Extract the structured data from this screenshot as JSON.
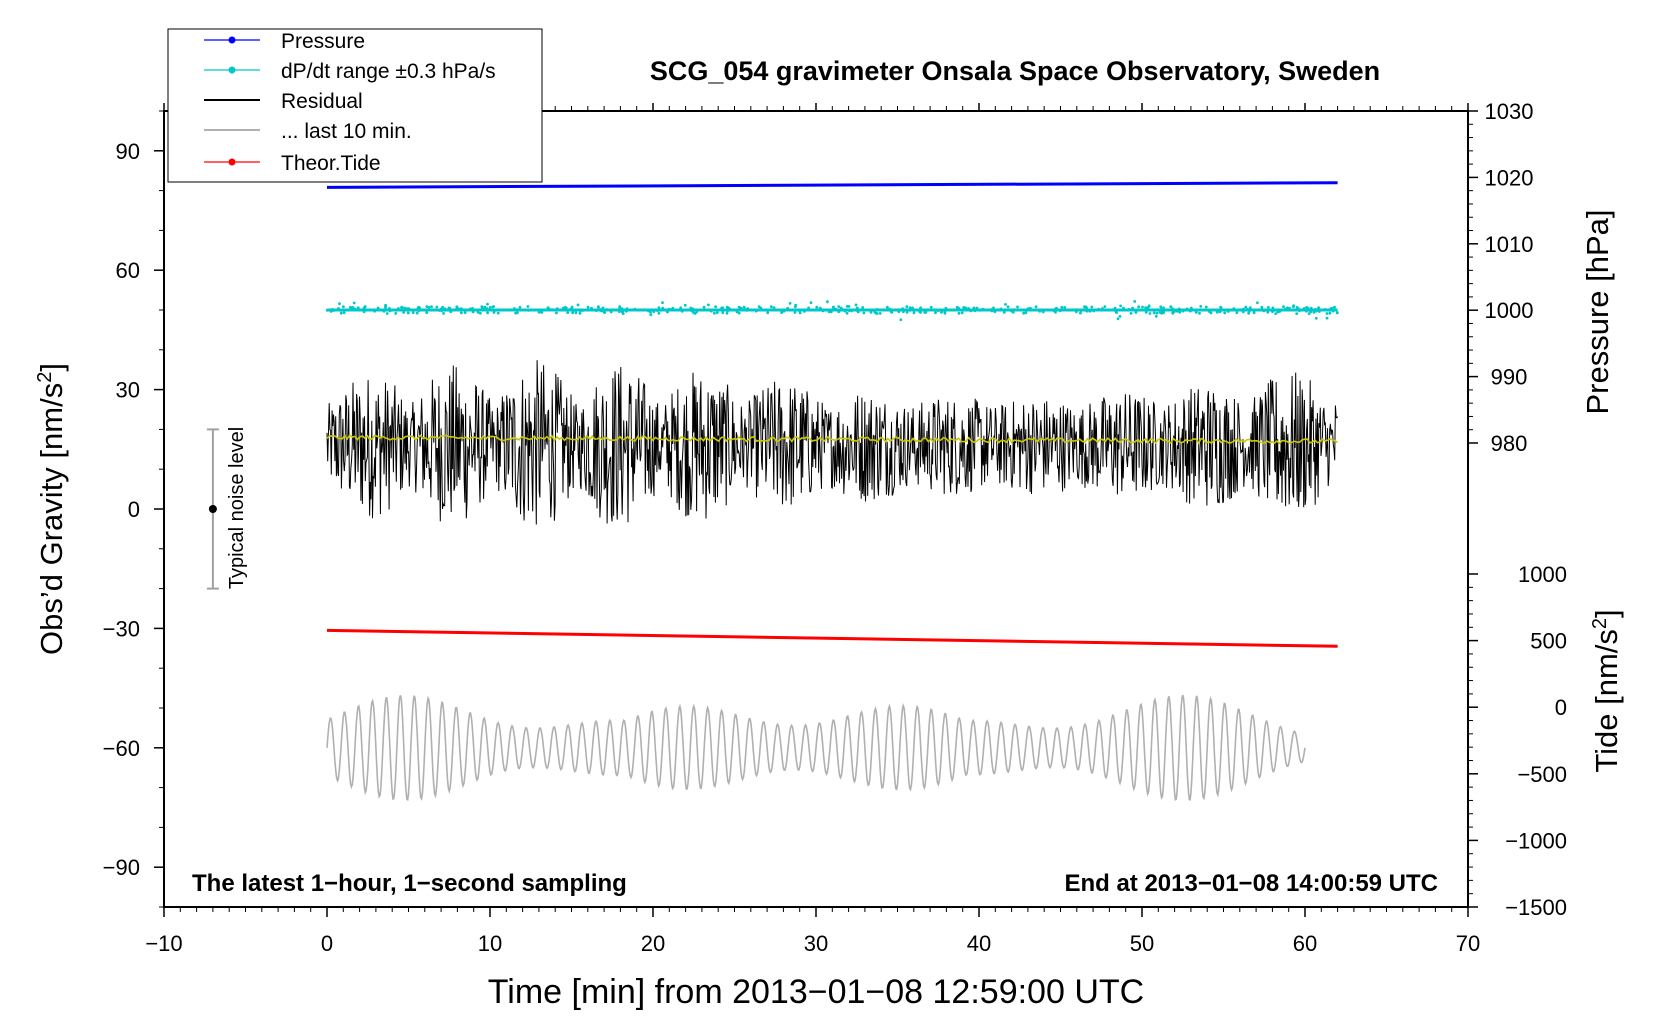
{
  "chart_data": {
    "type": "line",
    "title": "SCG_054 gravimeter Onsala Space Observatory, Sweden",
    "xlabel": "Time [min] from 2013−01−08 12:59:00 UTC",
    "ylabel_left": "Obs’d Gravity [nm/s",
    "ylabel_left_sup": "2",
    "ylabel_left_close": "]",
    "ylabel_right_pressure": "Pressure [hPa]",
    "ylabel_right_tide": "Tide [nm/s",
    "ylabel_right_tide_sup": "2",
    "ylabel_right_tide_close": "]",
    "xlim": [
      -10,
      70
    ],
    "ylim_left": [
      -100,
      100
    ],
    "pressure_range": [
      980,
      1030
    ],
    "tide_range": [
      -1500,
      1000
    ],
    "x_ticks": [
      -10,
      0,
      10,
      20,
      30,
      40,
      50,
      60,
      70
    ],
    "x_tick_labels": [
      "−10",
      "0",
      "10",
      "20",
      "30",
      "40",
      "50",
      "60",
      "70"
    ],
    "y_ticks_left": [
      -90,
      -60,
      -30,
      0,
      30,
      60,
      90
    ],
    "y_tick_labels_left": [
      "−90",
      "−60",
      "−30",
      "0",
      "30",
      "60",
      "90"
    ],
    "pressure_ticks": [
      980,
      990,
      1000,
      1010,
      1020,
      1030
    ],
    "pressure_tick_labels": [
      "980",
      "990",
      "1000",
      "1010",
      "1020",
      "1030"
    ],
    "tide_ticks": [
      -1500,
      -1000,
      -500,
      0,
      500,
      1000
    ],
    "tide_tick_labels": [
      "−1500",
      "−1000",
      "−500",
      "0",
      "500",
      "1000"
    ],
    "legend_position": "top-left",
    "legend": [
      {
        "label": "Pressure",
        "color": "#0000ff",
        "marker": true
      },
      {
        "label": "dP/dt range ±0.3 hPa/s",
        "color": "#00c8c8",
        "marker": true
      },
      {
        "label": "Residual",
        "color": "#000000",
        "marker": false
      },
      {
        "label": "... last 10 min.",
        "color": "#b0b0b0",
        "marker": false
      },
      {
        "label": "Theor.Tide",
        "color": "#ff0000",
        "marker": true
      }
    ],
    "annotations": {
      "left_bottom": "The latest 1−hour, 1−second sampling",
      "right_bottom": "End at 2013−01−08 14:00:59 UTC",
      "noise_label": "Typical noise level"
    },
    "noise_bar": {
      "x": -7,
      "center": 0,
      "half_range": 20
    },
    "series": [
      {
        "name": "Pressure",
        "axis": "pressure",
        "color": "#0000ff",
        "x": [
          0,
          62
        ],
        "values": [
          1018.5,
          1019.2
        ]
      },
      {
        "name": "dP/dt",
        "axis": "left",
        "color": "#00c8c8",
        "x": [
          0,
          62
        ],
        "values": [
          50,
          50
        ]
      },
      {
        "name": "Residual",
        "axis": "left",
        "color": "#000000",
        "x": [
          0,
          62
        ],
        "values": [
          16,
          16
        ],
        "amplitude": 12
      },
      {
        "name": "Residual smoothed",
        "axis": "left",
        "color": "#c8c800",
        "x": [
          0,
          62
        ],
        "values": [
          18,
          17
        ]
      },
      {
        "name": "Theor.Tide",
        "axis": "left",
        "color": "#ff0000",
        "x": [
          0,
          62
        ],
        "values": [
          -30.5,
          -34.5
        ]
      },
      {
        "name": "Last 10 min",
        "axis": "left",
        "color": "#b0b0b0",
        "x": [
          0,
          60
        ],
        "values": [
          -60,
          -60
        ],
        "amplitude": 14
      }
    ]
  }
}
